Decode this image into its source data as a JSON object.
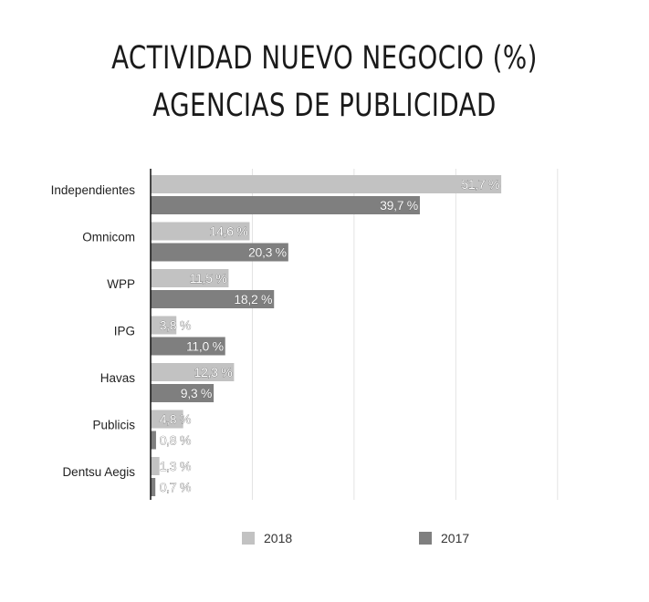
{
  "chart_data": {
    "type": "bar",
    "orientation": "horizontal",
    "title_lines": [
      "ACTIVIDAD NUEVO NEGOCIO (%)",
      "AGENCIAS DE PUBLICIDAD"
    ],
    "categories": [
      "Independientes",
      "Omnicom",
      "WPP",
      "IPG",
      "Havas",
      "Publicis",
      "Dentsu Aegis"
    ],
    "series": [
      {
        "name": "2018",
        "color": "#c2c2c2",
        "values": [
          51.7,
          14.6,
          11.5,
          3.8,
          12.3,
          4.8,
          1.3
        ],
        "labels": [
          "51,7 %",
          "14,6 %",
          "11,5 %",
          "3,8 %",
          "12,3 %",
          "4,8 %",
          "1,3 %"
        ]
      },
      {
        "name": "2017",
        "color": "#7f7f7f",
        "values": [
          39.7,
          20.3,
          18.2,
          11.0,
          9.3,
          0.8,
          0.7
        ],
        "labels": [
          "39,7 %",
          "20,3 %",
          "18,2 %",
          "11,0 %",
          "9,3 %",
          "0,8 %",
          "0,7 %"
        ]
      }
    ],
    "xlim": [
      0,
      60
    ],
    "grid": true,
    "legend_position": "bottom"
  }
}
